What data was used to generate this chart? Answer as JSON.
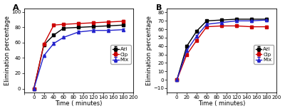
{
  "panel_A": {
    "title": "A",
    "x": [
      0,
      20,
      40,
      60,
      90,
      120,
      150,
      180
    ],
    "azi": [
      0,
      57,
      70,
      79,
      80,
      81,
      82,
      83
    ],
    "cip": [
      0,
      58,
      83,
      84,
      85,
      86,
      87,
      88
    ],
    "mix": [
      0,
      43,
      59,
      67,
      74,
      76,
      76,
      77
    ],
    "azi_err": [
      0.5,
      1.5,
      1.5,
      1.5,
      1.5,
      1.5,
      1.5,
      1.5
    ],
    "cip_err": [
      0.5,
      1.5,
      1.5,
      1.5,
      1.5,
      1.5,
      1.5,
      1.5
    ],
    "mix_err": [
      0.5,
      1.5,
      1.5,
      1.5,
      1.5,
      1.5,
      1.5,
      1.5
    ],
    "ylim": [
      -5,
      105
    ],
    "yticks": [
      0,
      20,
      40,
      60,
      80,
      100
    ],
    "ylabel": "Elimination percentage"
  },
  "panel_B": {
    "title": "B",
    "x": [
      0,
      20,
      40,
      60,
      90,
      120,
      150,
      180
    ],
    "azi": [
      0,
      40,
      58,
      70,
      71,
      72,
      72,
      72
    ],
    "cip": [
      0,
      30,
      47,
      63,
      64,
      64,
      63,
      63
    ],
    "mix": [
      0,
      35,
      52,
      66,
      68,
      70,
      70,
      71
    ],
    "azi_err": [
      0.5,
      1.5,
      1.5,
      1.5,
      1.5,
      1.5,
      1.5,
      1.5
    ],
    "cip_err": [
      0.5,
      1.5,
      1.5,
      1.5,
      1.5,
      1.5,
      1.5,
      1.5
    ],
    "mix_err": [
      0.5,
      1.5,
      1.5,
      1.5,
      1.5,
      1.5,
      1.5,
      1.5
    ],
    "ylim": [
      -15,
      85
    ],
    "yticks": [
      -10,
      0,
      10,
      20,
      30,
      40,
      50,
      60,
      70,
      80
    ],
    "ylabel": "Elimination percentage"
  },
  "xlabel": "Time ( minutes)",
  "azi_color": "#000000",
  "cip_color": "#cc0000",
  "mix_color": "#2222cc",
  "azi_label": "Azi",
  "cip_label": "Cip",
  "mix_label": "Mix",
  "xlim": [
    -20,
    200
  ],
  "xticks": [
    -20,
    0,
    20,
    40,
    60,
    80,
    100,
    120,
    140,
    160,
    180,
    200
  ],
  "xtick_labels": [
    "",
    "0",
    "20",
    "40",
    "60",
    "80",
    "100",
    "120",
    "140",
    "160",
    "180",
    "200"
  ],
  "marker_sq": "s",
  "marker_tri": "^",
  "linewidth": 1.0,
  "markersize": 3.0,
  "background": "#ffffff",
  "tick_fontsize": 5,
  "label_fontsize": 6,
  "title_fontsize": 8,
  "legend_fontsize": 5
}
